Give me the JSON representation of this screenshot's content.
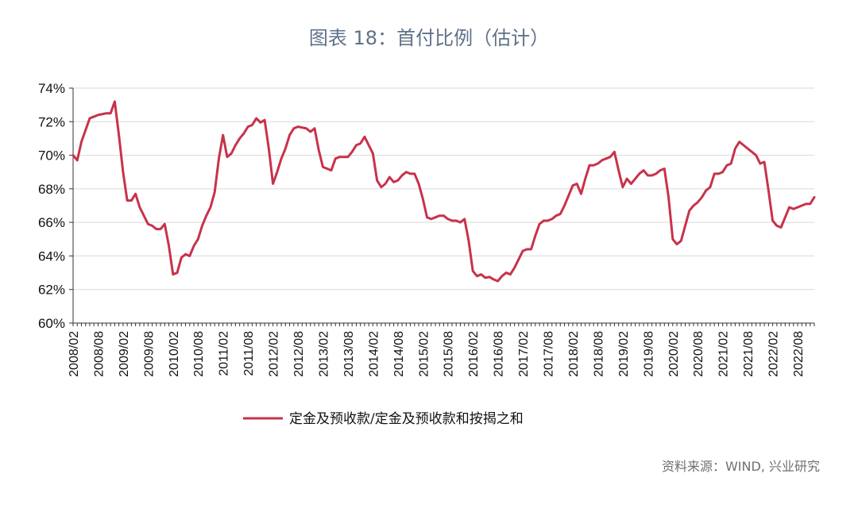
{
  "page": {
    "title": "图表 18：首付比例（估计）",
    "source": "资料来源：WIND, 兴业研究"
  },
  "chart_data": {
    "type": "line",
    "title": "图表 18：首付比例（估计）",
    "xlabel": "",
    "ylabel": "",
    "ylim": [
      60,
      74
    ],
    "ytick_labels": [
      "60%",
      "62%",
      "64%",
      "66%",
      "68%",
      "70%",
      "72%",
      "74%"
    ],
    "xtick_labels": [
      "2008/02",
      "2008/08",
      "2009/02",
      "2009/08",
      "2010/02",
      "2010/08",
      "2011/02",
      "2011/08",
      "2012/02",
      "2012/08",
      "2013/02",
      "2013/08",
      "2014/02",
      "2014/08",
      "2015/02",
      "2015/08",
      "2016/02",
      "2016/08",
      "2017/02",
      "2017/08",
      "2018/02",
      "2018/08",
      "2019/02",
      "2019/08",
      "2020/02",
      "2020/08",
      "2021/02",
      "2021/08",
      "2022/02",
      "2022/08"
    ],
    "grid": true,
    "legend": "bottom-center",
    "color": "#c8324b",
    "series": [
      {
        "name": "定金及预收款/定金及预收款和按揭之和",
        "x": [
          "2008/02",
          "2008/03",
          "2008/04",
          "2008/05",
          "2008/06",
          "2008/07",
          "2008/08",
          "2008/09",
          "2008/10",
          "2008/11",
          "2008/12",
          "2009/01",
          "2009/02",
          "2009/03",
          "2009/04",
          "2009/05",
          "2009/06",
          "2009/07",
          "2009/08",
          "2009/09",
          "2009/10",
          "2009/11",
          "2009/12",
          "2010/01",
          "2010/02",
          "2010/03",
          "2010/04",
          "2010/05",
          "2010/06",
          "2010/07",
          "2010/08",
          "2010/09",
          "2010/10",
          "2010/11",
          "2010/12",
          "2011/01",
          "2011/02",
          "2011/03",
          "2011/04",
          "2011/05",
          "2011/06",
          "2011/07",
          "2011/08",
          "2011/09",
          "2011/10",
          "2011/11",
          "2011/12",
          "2012/01",
          "2012/02",
          "2012/03",
          "2012/04",
          "2012/05",
          "2012/06",
          "2012/07",
          "2012/08",
          "2012/09",
          "2012/10",
          "2012/11",
          "2012/12",
          "2013/01",
          "2013/02",
          "2013/03",
          "2013/04",
          "2013/05",
          "2013/06",
          "2013/07",
          "2013/08",
          "2013/09",
          "2013/10",
          "2013/11",
          "2013/12",
          "2014/01",
          "2014/02",
          "2014/03",
          "2014/04",
          "2014/05",
          "2014/06",
          "2014/07",
          "2014/08",
          "2014/09",
          "2014/10",
          "2014/11",
          "2014/12",
          "2015/01",
          "2015/02",
          "2015/03",
          "2015/04",
          "2015/05",
          "2015/06",
          "2015/07",
          "2015/08",
          "2015/09",
          "2015/10",
          "2015/11",
          "2015/12",
          "2016/01",
          "2016/02",
          "2016/03",
          "2016/04",
          "2016/05",
          "2016/06",
          "2016/07",
          "2016/08",
          "2016/09",
          "2016/10",
          "2016/11",
          "2016/12",
          "2017/01",
          "2017/02",
          "2017/03",
          "2017/04",
          "2017/05",
          "2017/06",
          "2017/07",
          "2017/08",
          "2017/09",
          "2017/10",
          "2017/11",
          "2017/12",
          "2018/01",
          "2018/02",
          "2018/03",
          "2018/04",
          "2018/05",
          "2018/06",
          "2018/07",
          "2018/08",
          "2018/09",
          "2018/10",
          "2018/11",
          "2018/12",
          "2019/01",
          "2019/02",
          "2019/03",
          "2019/04",
          "2019/05",
          "2019/06",
          "2019/07",
          "2019/08",
          "2019/09",
          "2019/10",
          "2019/11",
          "2019/12",
          "2020/01",
          "2020/02",
          "2020/03",
          "2020/04",
          "2020/05",
          "2020/06",
          "2020/07",
          "2020/08",
          "2020/09",
          "2020/10",
          "2020/11",
          "2020/12",
          "2021/01",
          "2021/02",
          "2021/03",
          "2021/04",
          "2021/05",
          "2021/06",
          "2021/07",
          "2021/08",
          "2021/09",
          "2021/10",
          "2021/11",
          "2021/12",
          "2022/01",
          "2022/02",
          "2022/03",
          "2022/04",
          "2022/05",
          "2022/06",
          "2022/07",
          "2022/08",
          "2022/09",
          "2022/10",
          "2022/11",
          "2022/12"
        ],
        "values": [
          70.0,
          69.7,
          70.8,
          71.5,
          72.2,
          72.3,
          72.4,
          72.45,
          72.5,
          72.5,
          73.2,
          71.2,
          69.0,
          67.3,
          67.3,
          67.7,
          66.9,
          66.4,
          65.9,
          65.8,
          65.6,
          65.6,
          65.9,
          64.6,
          62.9,
          63.0,
          63.9,
          64.1,
          64.0,
          64.6,
          65.0,
          65.8,
          66.4,
          66.9,
          67.8,
          69.8,
          71.2,
          69.9,
          70.1,
          70.6,
          71.0,
          71.3,
          71.7,
          71.8,
          72.2,
          71.95,
          72.1,
          70.4,
          68.3,
          69.0,
          69.8,
          70.4,
          71.2,
          71.6,
          71.7,
          71.65,
          71.6,
          71.4,
          71.6,
          70.3,
          69.3,
          69.2,
          69.1,
          69.8,
          69.9,
          69.9,
          69.9,
          70.2,
          70.6,
          70.7,
          71.1,
          70.6,
          70.1,
          68.5,
          68.1,
          68.3,
          68.7,
          68.4,
          68.5,
          68.8,
          69.0,
          68.9,
          68.9,
          68.3,
          67.4,
          66.3,
          66.2,
          66.3,
          66.4,
          66.4,
          66.2,
          66.1,
          66.1,
          66.0,
          66.2,
          64.9,
          63.1,
          62.8,
          62.9,
          62.7,
          62.75,
          62.6,
          62.5,
          62.8,
          63.0,
          62.9,
          63.3,
          63.8,
          64.3,
          64.4,
          64.4,
          65.2,
          65.9,
          66.1,
          66.1,
          66.2,
          66.4,
          66.5,
          67.0,
          67.6,
          68.2,
          68.3,
          67.7,
          68.6,
          69.4,
          69.4,
          69.5,
          69.7,
          69.8,
          69.9,
          70.2,
          69.1,
          68.1,
          68.6,
          68.3,
          68.6,
          68.9,
          69.1,
          68.8,
          68.8,
          68.9,
          69.1,
          69.2,
          67.5,
          65.0,
          64.7,
          64.9,
          65.8,
          66.7,
          67.0,
          67.2,
          67.5,
          67.9,
          68.1,
          68.9,
          68.9,
          69.0,
          69.4,
          69.5,
          70.4,
          70.8,
          70.6,
          70.4,
          70.2,
          70.0,
          69.5,
          69.6,
          67.9,
          66.1,
          65.8,
          65.7,
          66.3,
          66.9,
          66.8,
          66.9,
          67.0,
          67.1,
          67.1,
          67.5
        ]
      }
    ]
  }
}
